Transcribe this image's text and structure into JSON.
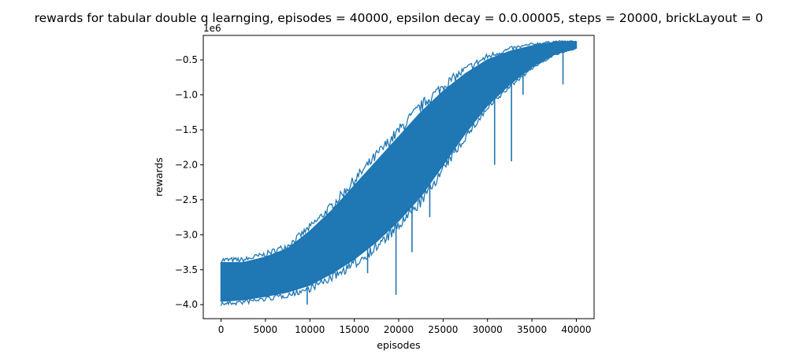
{
  "chart_data": {
    "type": "line",
    "title": "rewards for tabular double q learnging, episodes = 40000, epsilon decay = 0.0.00005, steps = 20000, brickLayout = 0",
    "xlabel": "episodes",
    "ylabel": "rewards",
    "y_offset_label": "1e6",
    "xlim": [
      -2000,
      42000
    ],
    "ylim": [
      -4.2,
      -0.15
    ],
    "y_scale_factor": 1000000,
    "x_ticks": [
      0,
      5000,
      10000,
      15000,
      20000,
      25000,
      30000,
      35000,
      40000
    ],
    "x_tick_labels": [
      "0",
      "5000",
      "10000",
      "15000",
      "20000",
      "25000",
      "30000",
      "35000",
      "40000"
    ],
    "y_ticks": [
      -4.0,
      -3.5,
      -3.0,
      -2.5,
      -2.0,
      -1.5,
      -1.0,
      -0.5
    ],
    "y_tick_labels": [
      "−4.0",
      "−3.5",
      "−3.0",
      "−2.5",
      "−2.0",
      "−1.5",
      "−1.0",
      "−0.5"
    ],
    "grid": false,
    "legend": "none",
    "series": [
      {
        "color": "#1f77b4",
        "band": {
          "x": [
            0,
            2500,
            5000,
            7500,
            10000,
            12500,
            15000,
            17500,
            20000,
            22500,
            25000,
            27500,
            30000,
            32500,
            35000,
            37500,
            40000
          ],
          "lower": [
            -3.95,
            -3.93,
            -3.88,
            -3.82,
            -3.72,
            -3.55,
            -3.35,
            -3.1,
            -2.8,
            -2.45,
            -2.0,
            -1.55,
            -1.15,
            -0.85,
            -0.6,
            -0.42,
            -0.33
          ],
          "upper": [
            -3.4,
            -3.4,
            -3.32,
            -3.2,
            -2.95,
            -2.65,
            -2.3,
            -1.95,
            -1.6,
            -1.25,
            -0.95,
            -0.7,
            -0.5,
            -0.38,
            -0.3,
            -0.25,
            -0.24
          ]
        },
        "spikes": [
          {
            "x": 200,
            "y": -3.95
          },
          {
            "x": 9700,
            "y": -4.0
          },
          {
            "x": 16500,
            "y": -3.55
          },
          {
            "x": 19700,
            "y": -3.86
          },
          {
            "x": 21500,
            "y": -3.25
          },
          {
            "x": 23500,
            "y": -2.75
          },
          {
            "x": 30800,
            "y": -2.0
          },
          {
            "x": 32700,
            "y": -1.95
          },
          {
            "x": 34000,
            "y": -1.0
          },
          {
            "x": 38500,
            "y": -0.85
          }
        ]
      }
    ]
  }
}
